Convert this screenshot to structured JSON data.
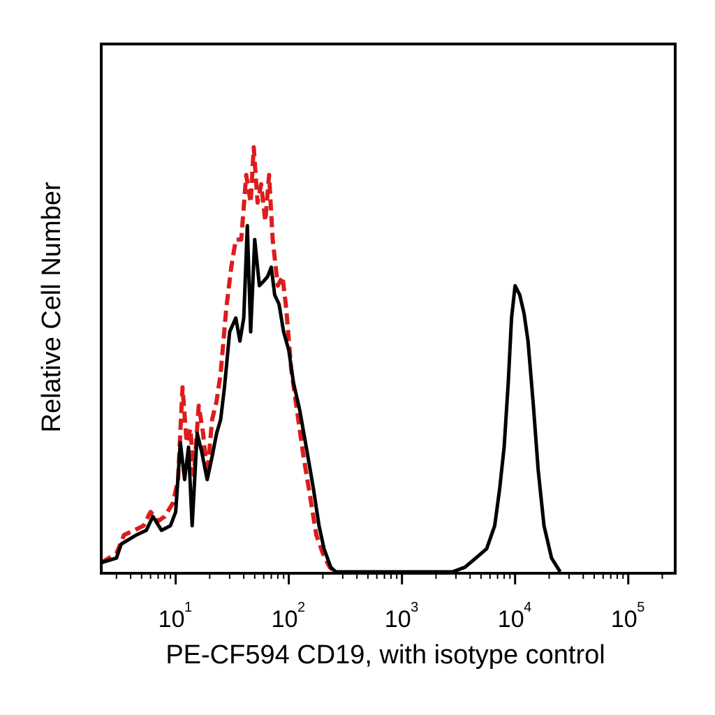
{
  "chart_data": {
    "type": "line",
    "title": "",
    "xlabel": "PE-CF594 CD19, with isotype control",
    "ylabel": "Relative Cell Number",
    "x_scale": "log",
    "xlim": [
      2.2,
      260000
    ],
    "ylim": [
      0,
      1.0
    ],
    "x_ticks": [
      {
        "value": 10,
        "base": "10",
        "exp": "1"
      },
      {
        "value": 100,
        "base": "10",
        "exp": "2"
      },
      {
        "value": 1000,
        "base": "10",
        "exp": "3"
      },
      {
        "value": 10000,
        "base": "10",
        "exp": "4"
      },
      {
        "value": 100000,
        "base": "10",
        "exp": "5"
      }
    ],
    "grid": false,
    "series": [
      {
        "color": "#000000",
        "dash": "solid",
        "points": [
          [
            2.2,
            0.02
          ],
          [
            3.0,
            0.03
          ],
          [
            3.3,
            0.06
          ],
          [
            4.5,
            0.08
          ],
          [
            5.5,
            0.09
          ],
          [
            6.3,
            0.12
          ],
          [
            7.5,
            0.09
          ],
          [
            9.0,
            0.1
          ],
          [
            10.0,
            0.13
          ],
          [
            11.0,
            0.28
          ],
          [
            12.0,
            0.2
          ],
          [
            13.0,
            0.27
          ],
          [
            14.0,
            0.1
          ],
          [
            15.5,
            0.3
          ],
          [
            17.0,
            0.26
          ],
          [
            19.0,
            0.2
          ],
          [
            21.0,
            0.25
          ],
          [
            23.0,
            0.3
          ],
          [
            25.0,
            0.33
          ],
          [
            27.0,
            0.4
          ],
          [
            30.0,
            0.52
          ],
          [
            34.0,
            0.55
          ],
          [
            37.0,
            0.5
          ],
          [
            40.0,
            0.55
          ],
          [
            43.0,
            0.75
          ],
          [
            46.0,
            0.52
          ],
          [
            50.0,
            0.72
          ],
          [
            55.0,
            0.62
          ],
          [
            60.0,
            0.63
          ],
          [
            65.0,
            0.64
          ],
          [
            70.0,
            0.66
          ],
          [
            75.0,
            0.6
          ],
          [
            82.0,
            0.58
          ],
          [
            90.0,
            0.52
          ],
          [
            100.0,
            0.48
          ],
          [
            110.0,
            0.41
          ],
          [
            125.0,
            0.35
          ],
          [
            145.0,
            0.26
          ],
          [
            165.0,
            0.18
          ],
          [
            185.0,
            0.1
          ],
          [
            205.0,
            0.05
          ],
          [
            235.0,
            0.01
          ],
          [
            260.0,
            0.0
          ],
          [
            350.0,
            0.0
          ],
          [
            2800.0,
            0.0
          ],
          [
            3600.0,
            0.01
          ],
          [
            4500.0,
            0.03
          ],
          [
            5600.0,
            0.05
          ],
          [
            6600.0,
            0.1
          ],
          [
            7300.0,
            0.18
          ],
          [
            8000.0,
            0.27
          ],
          [
            8700.0,
            0.41
          ],
          [
            9300.0,
            0.55
          ],
          [
            10000.0,
            0.62
          ],
          [
            11000.0,
            0.6
          ],
          [
            12000.0,
            0.56
          ],
          [
            13000.0,
            0.5
          ],
          [
            14500.0,
            0.36
          ],
          [
            16000.0,
            0.22
          ],
          [
            18000.0,
            0.1
          ],
          [
            21000.0,
            0.03
          ],
          [
            25000.0,
            0.0
          ]
        ]
      },
      {
        "color": "#dd1c1c",
        "dash": "dashed",
        "points": [
          [
            2.2,
            0.02
          ],
          [
            3.0,
            0.04
          ],
          [
            3.5,
            0.08
          ],
          [
            4.3,
            0.09
          ],
          [
            5.2,
            0.1
          ],
          [
            6.0,
            0.13
          ],
          [
            7.0,
            0.11
          ],
          [
            8.0,
            0.12
          ],
          [
            9.5,
            0.15
          ],
          [
            10.5,
            0.2
          ],
          [
            11.5,
            0.4
          ],
          [
            12.5,
            0.28
          ],
          [
            13.5,
            0.31
          ],
          [
            14.5,
            0.21
          ],
          [
            16.0,
            0.36
          ],
          [
            17.5,
            0.3
          ],
          [
            19.0,
            0.21
          ],
          [
            21.0,
            0.33
          ],
          [
            23.0,
            0.37
          ],
          [
            25.0,
            0.43
          ],
          [
            28.0,
            0.57
          ],
          [
            31.0,
            0.66
          ],
          [
            34.0,
            0.72
          ],
          [
            38.0,
            0.72
          ],
          [
            42.0,
            0.86
          ],
          [
            46.0,
            0.8
          ],
          [
            49.0,
            0.92
          ],
          [
            53.0,
            0.8
          ],
          [
            57.0,
            0.84
          ],
          [
            62.0,
            0.76
          ],
          [
            67.0,
            0.86
          ],
          [
            72.0,
            0.72
          ],
          [
            80.0,
            0.62
          ],
          [
            88.0,
            0.64
          ],
          [
            95.0,
            0.57
          ],
          [
            105.0,
            0.44
          ],
          [
            118.0,
            0.35
          ],
          [
            135.0,
            0.25
          ],
          [
            155.0,
            0.16
          ],
          [
            175.0,
            0.08
          ],
          [
            200.0,
            0.04
          ],
          [
            230.0,
            0.01
          ],
          [
            255.0,
            0.0
          ]
        ]
      }
    ]
  }
}
